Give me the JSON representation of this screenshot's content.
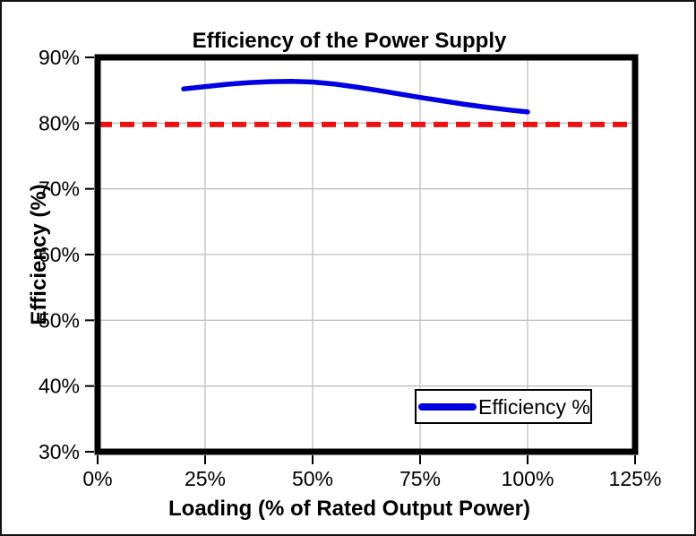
{
  "chart_data": {
    "type": "line",
    "title": "Efficiency of the Power Supply",
    "xlabel": "Loading (% of Rated Output Power)",
    "ylabel": "Efficiency (%)",
    "x_axis": {
      "min": 0,
      "max": 125,
      "ticks": [
        0,
        25,
        50,
        75,
        100,
        125
      ],
      "tick_suffix": "%"
    },
    "y_axis": {
      "min": 30,
      "max": 90,
      "ticks": [
        30,
        40,
        50,
        60,
        70,
        80,
        90
      ],
      "tick_suffix": "%"
    },
    "grid": true,
    "colors": {
      "curve": "#0000E0",
      "reference": "#EE1111",
      "grid": "#C0C0C0",
      "frame": "#000000",
      "legend_border": "#000000",
      "background": "#FFFFFF"
    },
    "series": [
      {
        "name": "Efficiency %",
        "color": "#0000E0",
        "style": "smooth-solid",
        "points": [
          [
            20,
            85.2
          ],
          [
            25,
            85.55
          ],
          [
            30,
            85.9
          ],
          [
            35,
            86.15
          ],
          [
            40,
            86.3
          ],
          [
            45,
            86.35
          ],
          [
            50,
            86.25
          ],
          [
            55,
            85.95
          ],
          [
            60,
            85.5
          ],
          [
            65,
            85.0
          ],
          [
            70,
            84.45
          ],
          [
            75,
            83.9
          ],
          [
            80,
            83.4
          ],
          [
            85,
            82.9
          ],
          [
            90,
            82.45
          ],
          [
            95,
            82.05
          ],
          [
            100,
            81.7
          ]
        ]
      }
    ],
    "reference_line": {
      "orientation": "horizontal",
      "value": 80,
      "color": "#EE1111",
      "style": "dashed"
    },
    "legend": {
      "position": "inside-bottom-right",
      "entries": [
        "Efficiency %"
      ]
    }
  }
}
